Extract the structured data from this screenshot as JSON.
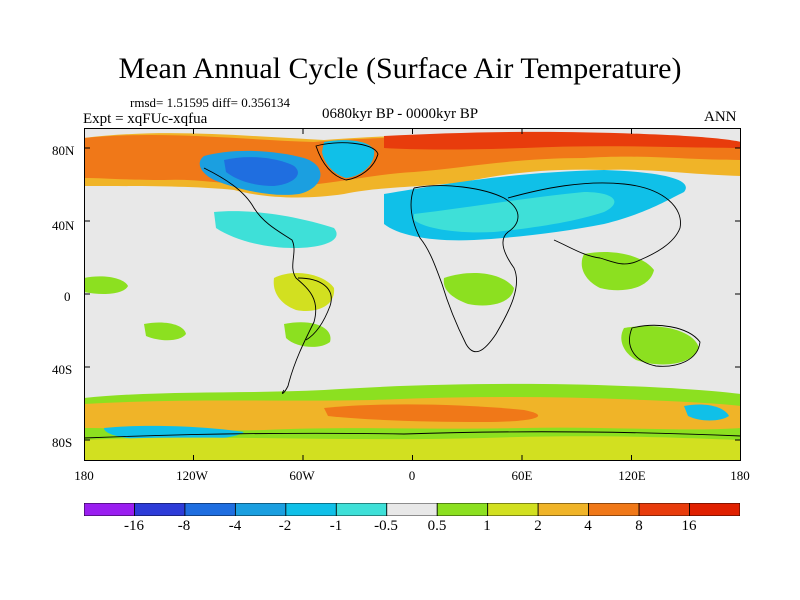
{
  "header": {
    "title": "Mean Annual Cycle (Surface Air Temperature)",
    "stats": "rmsd= 1.51595 diff= 0.356134",
    "experiment": "Expt = xqFUc-xqfua",
    "period": "0680kyr BP - 0000kyr BP",
    "season": "ANN"
  },
  "axes": {
    "lat_labels": [
      "80N",
      "40N",
      "0",
      "40S",
      "80S"
    ],
    "lon_labels": [
      "180",
      "120W",
      "60W",
      "0",
      "60E",
      "120E",
      "180"
    ]
  },
  "legend": {
    "labels": [
      "-16",
      "-8",
      "-4",
      "-2",
      "-1",
      "-0.5",
      "0.5",
      "1",
      "2",
      "4",
      "8",
      "16"
    ],
    "colors": [
      "#9a1ef0",
      "#2d3cd8",
      "#1f6ee0",
      "#1b9fe0",
      "#10c0e8",
      "#3ee0d8",
      "#e8e8e8",
      "#8ce020",
      "#d2e020",
      "#f0b428",
      "#f07818",
      "#e83c0c",
      "#e02000"
    ]
  }
}
